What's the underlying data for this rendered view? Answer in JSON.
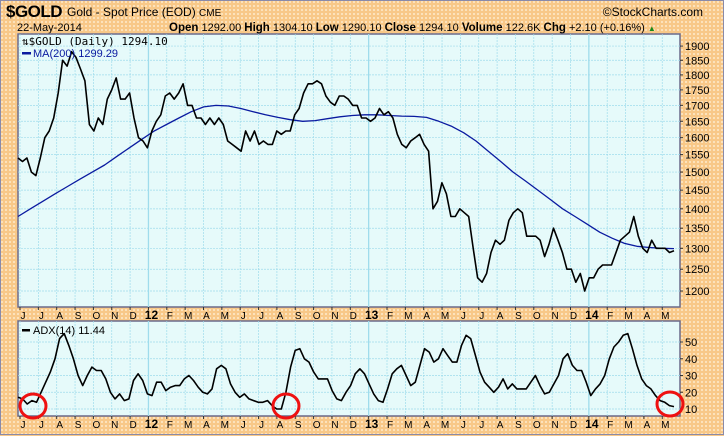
{
  "header": {
    "symbol": "$GOLD",
    "description": "Gold - Spot Price (EOD)",
    "exchange": "CME",
    "brand": "©StockCharts.com",
    "date": "22-May-2014",
    "open_label": "Open",
    "open": "1292.00",
    "high_label": "High",
    "high": "1304.10",
    "low_label": "Low",
    "low": "1290.10",
    "close_label": "Close",
    "close": "1294.10",
    "volume_label": "Volume",
    "volume": "122.6K",
    "chg_label": "Chg",
    "chg": "+2.10 (+0.16%)"
  },
  "colors": {
    "price": "#000000",
    "ma": "#0a1aa0",
    "adx": "#000000",
    "circle": "#ee1111",
    "plot_bg": "#e6fafa",
    "grid": "#9fdcec"
  },
  "chart_data": [
    {
      "type": "line",
      "title": "$GOLD (Daily)",
      "legend": [
        "$GOLD (Daily) 1294.10",
        "MA(200) 1299.29"
      ],
      "legend_placement": "top-left",
      "x_start": "2011-06",
      "x_end": "2014-05-22",
      "x_step": "week",
      "x_tick_labels": [
        "J",
        "J",
        "A",
        "S",
        "O",
        "N",
        "D",
        "12",
        "F",
        "M",
        "A",
        "M",
        "J",
        "J",
        "A",
        "S",
        "O",
        "N",
        "D",
        "13",
        "F",
        "M",
        "A",
        "M",
        "J",
        "J",
        "A",
        "S",
        "O",
        "N",
        "D",
        "14",
        "F",
        "M",
        "A",
        "M"
      ],
      "y_scale": "log",
      "ylim": [
        1170,
        1920
      ],
      "y_ticks": [
        1900,
        1850,
        1800,
        1750,
        1700,
        1650,
        1600,
        1550,
        1500,
        1450,
        1400,
        1350,
        1300,
        1250,
        1200
      ],
      "grid": true,
      "series": [
        {
          "name": "$GOLD (Daily)",
          "values": [
            1540,
            1530,
            1540,
            1500,
            1490,
            1540,
            1600,
            1620,
            1660,
            1740,
            1850,
            1830,
            1880,
            1860,
            1820,
            1780,
            1640,
            1620,
            1660,
            1640,
            1720,
            1750,
            1790,
            1720,
            1720,
            1740,
            1660,
            1600,
            1590,
            1570,
            1620,
            1650,
            1670,
            1730,
            1740,
            1720,
            1740,
            1770,
            1700,
            1700,
            1660,
            1660,
            1640,
            1660,
            1640,
            1660,
            1640,
            1590,
            1580,
            1570,
            1560,
            1620,
            1590,
            1620,
            1580,
            1590,
            1580,
            1580,
            1620,
            1610,
            1620,
            1620,
            1670,
            1690,
            1740,
            1770,
            1770,
            1780,
            1770,
            1730,
            1710,
            1700,
            1730,
            1730,
            1720,
            1700,
            1700,
            1660,
            1660,
            1650,
            1660,
            1690,
            1670,
            1680,
            1660,
            1610,
            1580,
            1570,
            1590,
            1600,
            1610,
            1580,
            1560,
            1400,
            1420,
            1470,
            1440,
            1380,
            1380,
            1400,
            1390,
            1380,
            1300,
            1230,
            1220,
            1240,
            1290,
            1320,
            1310,
            1320,
            1370,
            1390,
            1400,
            1390,
            1330,
            1330,
            1330,
            1320,
            1280,
            1310,
            1350,
            1320,
            1290,
            1250,
            1250,
            1220,
            1240,
            1200,
            1230,
            1230,
            1250,
            1260,
            1260,
            1260,
            1290,
            1320,
            1330,
            1340,
            1380,
            1330,
            1300,
            1290,
            1320,
            1300,
            1300,
            1300,
            1290,
            1294.1
          ]
        },
        {
          "name": "MA(200)",
          "values": [
            1380,
            1400,
            1420,
            1440,
            1460,
            1480,
            1500,
            1520,
            1545,
            1570,
            1595,
            1620,
            1640,
            1660,
            1680,
            1695,
            1700,
            1698,
            1690,
            1680,
            1670,
            1662,
            1655,
            1650,
            1652,
            1658,
            1664,
            1668,
            1670,
            1670,
            1668,
            1666,
            1665,
            1662,
            1650,
            1635,
            1615,
            1590,
            1560,
            1530,
            1500,
            1475,
            1450,
            1425,
            1400,
            1380,
            1360,
            1340,
            1325,
            1312,
            1305,
            1302,
            1300,
            1299.29
          ]
        }
      ]
    },
    {
      "type": "line",
      "title": "ADX(14)",
      "legend": [
        "ADX(14) 11.44"
      ],
      "ylim": [
        4,
        60
      ],
      "y_ticks": [
        50,
        40,
        30,
        20,
        10
      ],
      "x_tick_labels": [
        "J",
        "J",
        "A",
        "S",
        "O",
        "N",
        "D",
        "12",
        "F",
        "M",
        "A",
        "M",
        "J",
        "J",
        "A",
        "S",
        "O",
        "N",
        "D",
        "13",
        "F",
        "M",
        "A",
        "M",
        "J",
        "J",
        "A",
        "S",
        "O",
        "N",
        "D",
        "14",
        "F",
        "M",
        "A",
        "M"
      ],
      "series": [
        {
          "name": "ADX(14)",
          "values": [
            17,
            16,
            13,
            15,
            14,
            20,
            26,
            32,
            40,
            52,
            55,
            48,
            40,
            30,
            24,
            30,
            35,
            33,
            33,
            28,
            20,
            16,
            19,
            15,
            16,
            27,
            31,
            27,
            19,
            18,
            26,
            26,
            21,
            23,
            24,
            24,
            28,
            30,
            27,
            23,
            20,
            19,
            22,
            34,
            36,
            34,
            25,
            20,
            17,
            19,
            16,
            15,
            14,
            14,
            15,
            12,
            10,
            10,
            20,
            35,
            45,
            46,
            40,
            38,
            32,
            28,
            28,
            28,
            21,
            16,
            15,
            20,
            24,
            31,
            34,
            31,
            25,
            19,
            15,
            14,
            22,
            31,
            34,
            36,
            30,
            24,
            26,
            36,
            46,
            44,
            38,
            40,
            46,
            42,
            38,
            38,
            48,
            54,
            52,
            42,
            32,
            26,
            23,
            20,
            23,
            28,
            22,
            25,
            22,
            22,
            22,
            26,
            30,
            24,
            19,
            20,
            25,
            30,
            40,
            43,
            36,
            33,
            33,
            26,
            18,
            22,
            25,
            30,
            40,
            47,
            50,
            54,
            55,
            46,
            36,
            28,
            24,
            22,
            18,
            15,
            14,
            12,
            11.44
          ]
        }
      ],
      "annotations": [
        "circle at Jun-Jul 2011 low",
        "circle at Aug 2012 low",
        "circle at May 2014 low"
      ]
    }
  ]
}
